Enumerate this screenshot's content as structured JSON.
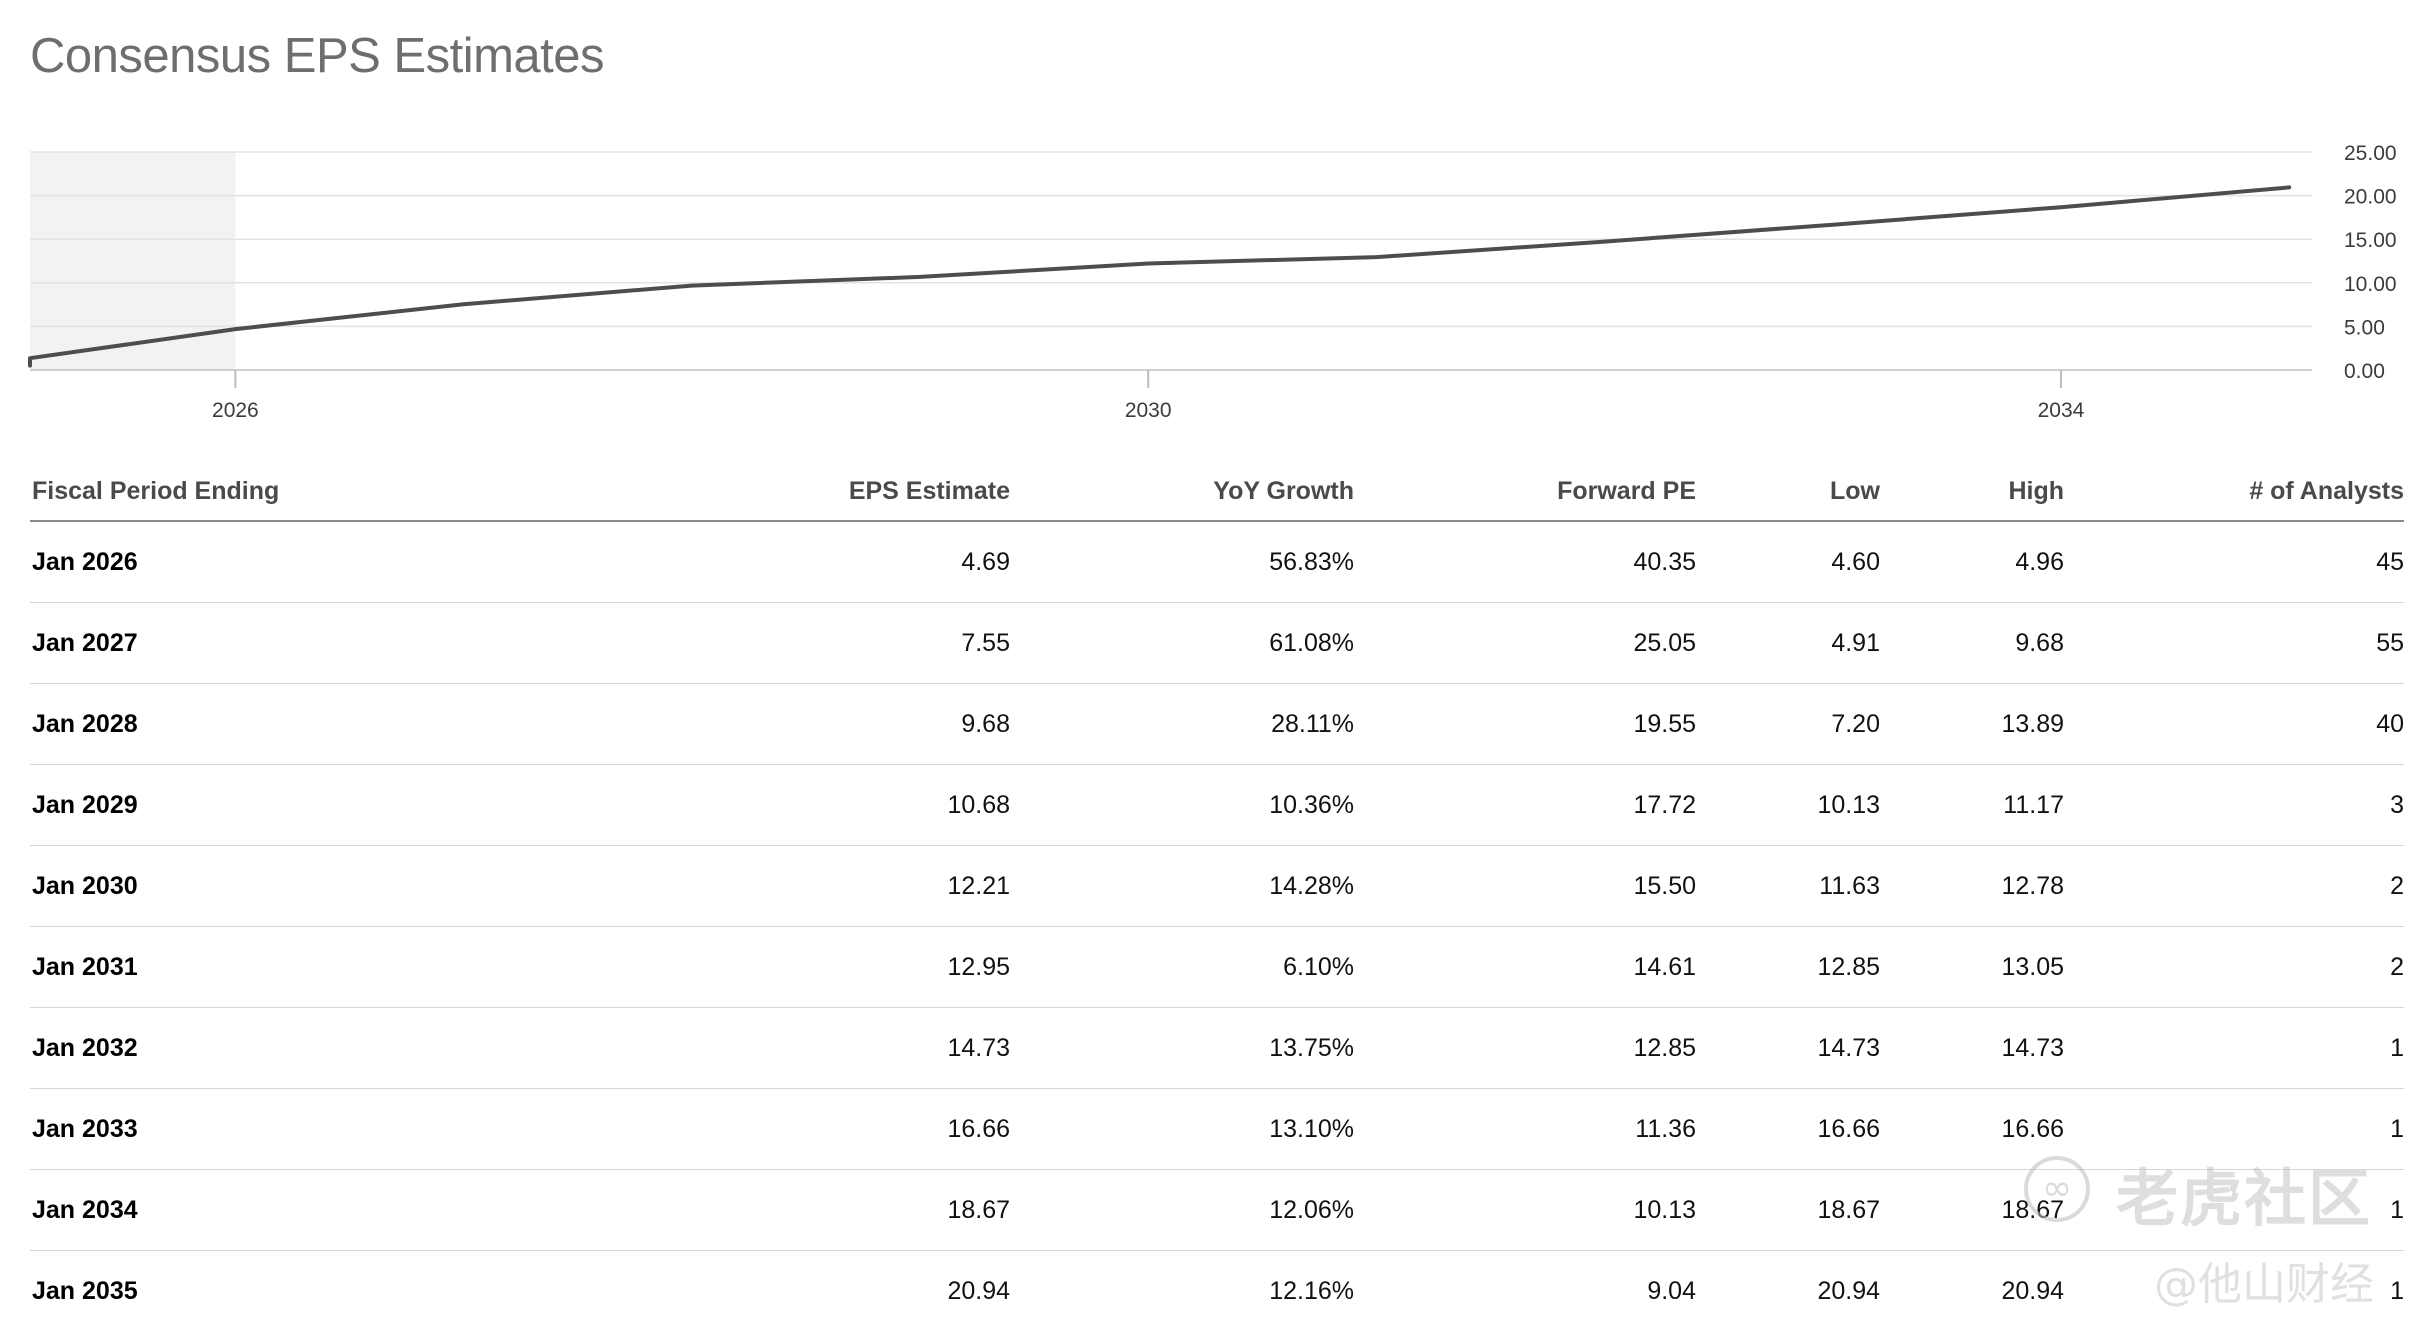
{
  "page": {
    "title": "Consensus EPS Estimates"
  },
  "chart_data": {
    "type": "line",
    "title": "",
    "xlabel": "",
    "ylabel": "",
    "x_ticks": [
      "2026",
      "2030",
      "2034"
    ],
    "y_ticks": [
      "25.00",
      "20.00",
      "15.00",
      "10.00",
      "5.00",
      "0.00"
    ],
    "ylim": [
      0,
      25
    ],
    "xlim": [
      2025.0,
      2035.0
    ],
    "y_axis_side": "right",
    "grid": true,
    "legend": "none",
    "shaded_region": [
      2025.0,
      2025.9
    ],
    "series": [
      {
        "values_x": [
          2025.0,
          2025.0,
          2025.9,
          2026.9,
          2027.9,
          2028.9,
          2029.9,
          2030.9,
          2031.9,
          2032.9,
          2033.9,
          2034.9
        ],
        "values_y": [
          0.5,
          1.35,
          4.69,
          7.55,
          9.68,
          10.68,
          12.21,
          12.95,
          14.73,
          16.66,
          18.67,
          20.94
        ],
        "color": "#4d4d4d"
      }
    ],
    "colors": {
      "line": "#4d4d4d",
      "shade": "#f2f2f5",
      "grid": "#e3e3e3"
    }
  },
  "table": {
    "headers": [
      "Fiscal Period Ending",
      "EPS Estimate",
      "YoY Growth",
      "Forward PE",
      "Low",
      "High",
      "# of Analysts"
    ],
    "rows": [
      [
        "Jan 2026",
        "4.69",
        "56.83%",
        "40.35",
        "4.60",
        "4.96",
        "45"
      ],
      [
        "Jan 2027",
        "7.55",
        "61.08%",
        "25.05",
        "4.91",
        "9.68",
        "55"
      ],
      [
        "Jan 2028",
        "9.68",
        "28.11%",
        "19.55",
        "7.20",
        "13.89",
        "40"
      ],
      [
        "Jan 2029",
        "10.68",
        "10.36%",
        "17.72",
        "10.13",
        "11.17",
        "3"
      ],
      [
        "Jan 2030",
        "12.21",
        "14.28%",
        "15.50",
        "11.63",
        "12.78",
        "2"
      ],
      [
        "Jan 2031",
        "12.95",
        "6.10%",
        "14.61",
        "12.85",
        "13.05",
        "2"
      ],
      [
        "Jan 2032",
        "14.73",
        "13.75%",
        "12.85",
        "14.73",
        "14.73",
        "1"
      ],
      [
        "Jan 2033",
        "16.66",
        "13.10%",
        "11.36",
        "16.66",
        "16.66",
        "1"
      ],
      [
        "Jan 2034",
        "18.67",
        "12.06%",
        "10.13",
        "18.67",
        "18.67",
        "1"
      ],
      [
        "Jan 2035",
        "20.94",
        "12.16%",
        "9.04",
        "20.94",
        "20.94",
        "1"
      ]
    ]
  },
  "watermark": {
    "logo_icon": "tiger-logo-icon",
    "brand": "老虎社区",
    "handle": "@他山财经"
  }
}
